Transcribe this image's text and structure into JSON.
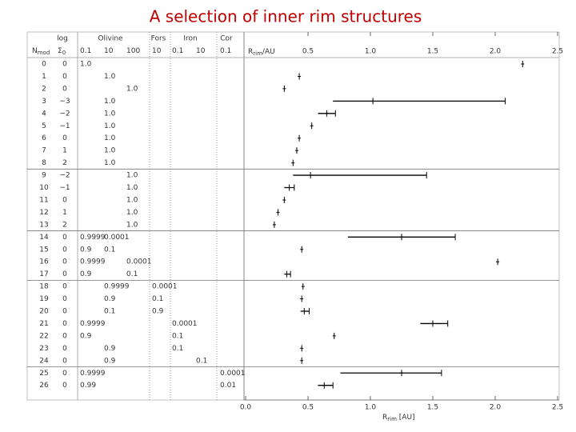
{
  "chart_data": {
    "type": "errorbar",
    "title": "A selection of inner rim structures",
    "group_headers": [
      {
        "label": "log",
        "col": 0
      },
      {
        "label": "Olivine",
        "col": 2
      },
      {
        "label": "Fors",
        "col": 4
      },
      {
        "label": "Iron",
        "col": 5.5
      },
      {
        "label": "Cor",
        "col": 7
      }
    ],
    "row_header": {
      "text": "N",
      "sub": "mod"
    },
    "columns": [
      {
        "text": "Σ",
        "sub": "0"
      },
      {
        "text": "0.1"
      },
      {
        "text": "10"
      },
      {
        "text": "100"
      },
      {
        "text": "10"
      },
      {
        "text": "0.1"
      },
      {
        "text": "10"
      },
      {
        "text": "0.1"
      }
    ],
    "categories": [
      "0",
      "1",
      "2",
      "3",
      "4",
      "5",
      "6",
      "7",
      "8",
      "9",
      "10",
      "11",
      "12",
      "13",
      "14",
      "15",
      "16",
      "17",
      "18",
      "19",
      "20",
      "21",
      "22",
      "23",
      "24",
      "25",
      "26"
    ],
    "table": [
      [
        "0",
        "1.0",
        null,
        null,
        null,
        null,
        null,
        null
      ],
      [
        "0",
        null,
        "1.0",
        null,
        null,
        null,
        null,
        null
      ],
      [
        "0",
        null,
        null,
        "1.0",
        null,
        null,
        null,
        null
      ],
      [
        "−3",
        null,
        "1.0",
        null,
        null,
        null,
        null,
        null
      ],
      [
        "−2",
        null,
        "1.0",
        null,
        null,
        null,
        null,
        null
      ],
      [
        "−1",
        null,
        "1.0",
        null,
        null,
        null,
        null,
        null
      ],
      [
        "0",
        null,
        "1.0",
        null,
        null,
        null,
        null,
        null
      ],
      [
        "1",
        null,
        "1.0",
        null,
        null,
        null,
        null,
        null
      ],
      [
        "2",
        null,
        "1.0",
        null,
        null,
        null,
        null,
        null
      ],
      [
        "−2",
        null,
        null,
        "1.0",
        null,
        null,
        null,
        null
      ],
      [
        "−1",
        null,
        null,
        "1.0",
        null,
        null,
        null,
        null
      ],
      [
        "0",
        null,
        null,
        "1.0",
        null,
        null,
        null,
        null
      ],
      [
        "1",
        null,
        null,
        "1.0",
        null,
        null,
        null,
        null
      ],
      [
        "2",
        null,
        null,
        "1.0",
        null,
        null,
        null,
        null
      ],
      [
        "0",
        "0.9999",
        "0.0001",
        null,
        null,
        null,
        null,
        null
      ],
      [
        "0",
        "0.9",
        "0.1",
        null,
        null,
        null,
        null,
        null
      ],
      [
        "0",
        "0.9999",
        null,
        "0.0001",
        null,
        null,
        null,
        null
      ],
      [
        "0",
        "0.9",
        null,
        "0.1",
        null,
        null,
        null,
        null
      ],
      [
        "0",
        null,
        "0.9999",
        null,
        "0.0001",
        null,
        null,
        null
      ],
      [
        "0",
        null,
        "0.9",
        null,
        "0.1",
        null,
        null,
        null
      ],
      [
        "0",
        null,
        "0.1",
        null,
        "0.9",
        null,
        null,
        null
      ],
      [
        "0",
        "0.9999",
        null,
        null,
        null,
        "0.0001",
        null,
        null
      ],
      [
        "0",
        "0.9",
        null,
        null,
        null,
        "0.1",
        null,
        null
      ],
      [
        "0",
        null,
        "0.9",
        null,
        null,
        "0.1",
        null,
        null
      ],
      [
        "0",
        null,
        "0.9",
        null,
        null,
        null,
        "0.1",
        null
      ],
      [
        "0",
        "0.9999",
        null,
        null,
        null,
        null,
        null,
        "0.0001"
      ],
      [
        "0",
        "0.99",
        null,
        null,
        null,
        null,
        null,
        "0.01"
      ]
    ],
    "group_breaks": [
      8,
      13,
      17,
      24
    ],
    "values": [
      2.22,
      0.43,
      0.31,
      1.02,
      0.65,
      0.53,
      0.43,
      0.41,
      0.38,
      0.52,
      0.35,
      0.31,
      0.26,
      0.23,
      1.25,
      0.45,
      2.02,
      0.33,
      0.46,
      0.45,
      0.47,
      1.5,
      0.71,
      0.45,
      0.45,
      1.25,
      0.63
    ],
    "lower": [
      null,
      null,
      null,
      0.7,
      0.58,
      null,
      null,
      null,
      null,
      0.38,
      0.31,
      null,
      null,
      null,
      0.82,
      null,
      null,
      0.31,
      null,
      null,
      0.44,
      1.4,
      null,
      null,
      null,
      0.76,
      0.58
    ],
    "upper": [
      null,
      null,
      null,
      2.08,
      0.72,
      null,
      null,
      null,
      null,
      1.45,
      0.39,
      null,
      null,
      null,
      1.68,
      null,
      null,
      0.36,
      null,
      null,
      0.51,
      1.62,
      null,
      null,
      null,
      1.57,
      0.7
    ],
    "color": "#000000",
    "xlim": [
      0,
      2.5
    ],
    "xticks": [
      {
        "value": 0,
        "label": "0.0"
      },
      {
        "value": 0.5,
        "label": "0.5"
      },
      {
        "value": 1,
        "label": "1.0"
      },
      {
        "value": 1.5,
        "label": "1.5"
      },
      {
        "value": 2,
        "label": "2.0"
      },
      {
        "value": 2.5,
        "label": "2.5"
      }
    ],
    "top_xticks": [
      {
        "value": 0.5,
        "label": "0.5"
      },
      {
        "value": 1,
        "label": "1.0"
      },
      {
        "value": 1.5,
        "label": "1.5"
      },
      {
        "value": 2,
        "label": "2.0"
      },
      {
        "value": 2.5,
        "label": "2.5"
      }
    ],
    "top_xlabel": {
      "text": "R",
      "sub": "rim",
      "rest": "/AU"
    },
    "xlabel": {
      "text": "R",
      "sub": "rim",
      "rest": " [AU]"
    }
  }
}
